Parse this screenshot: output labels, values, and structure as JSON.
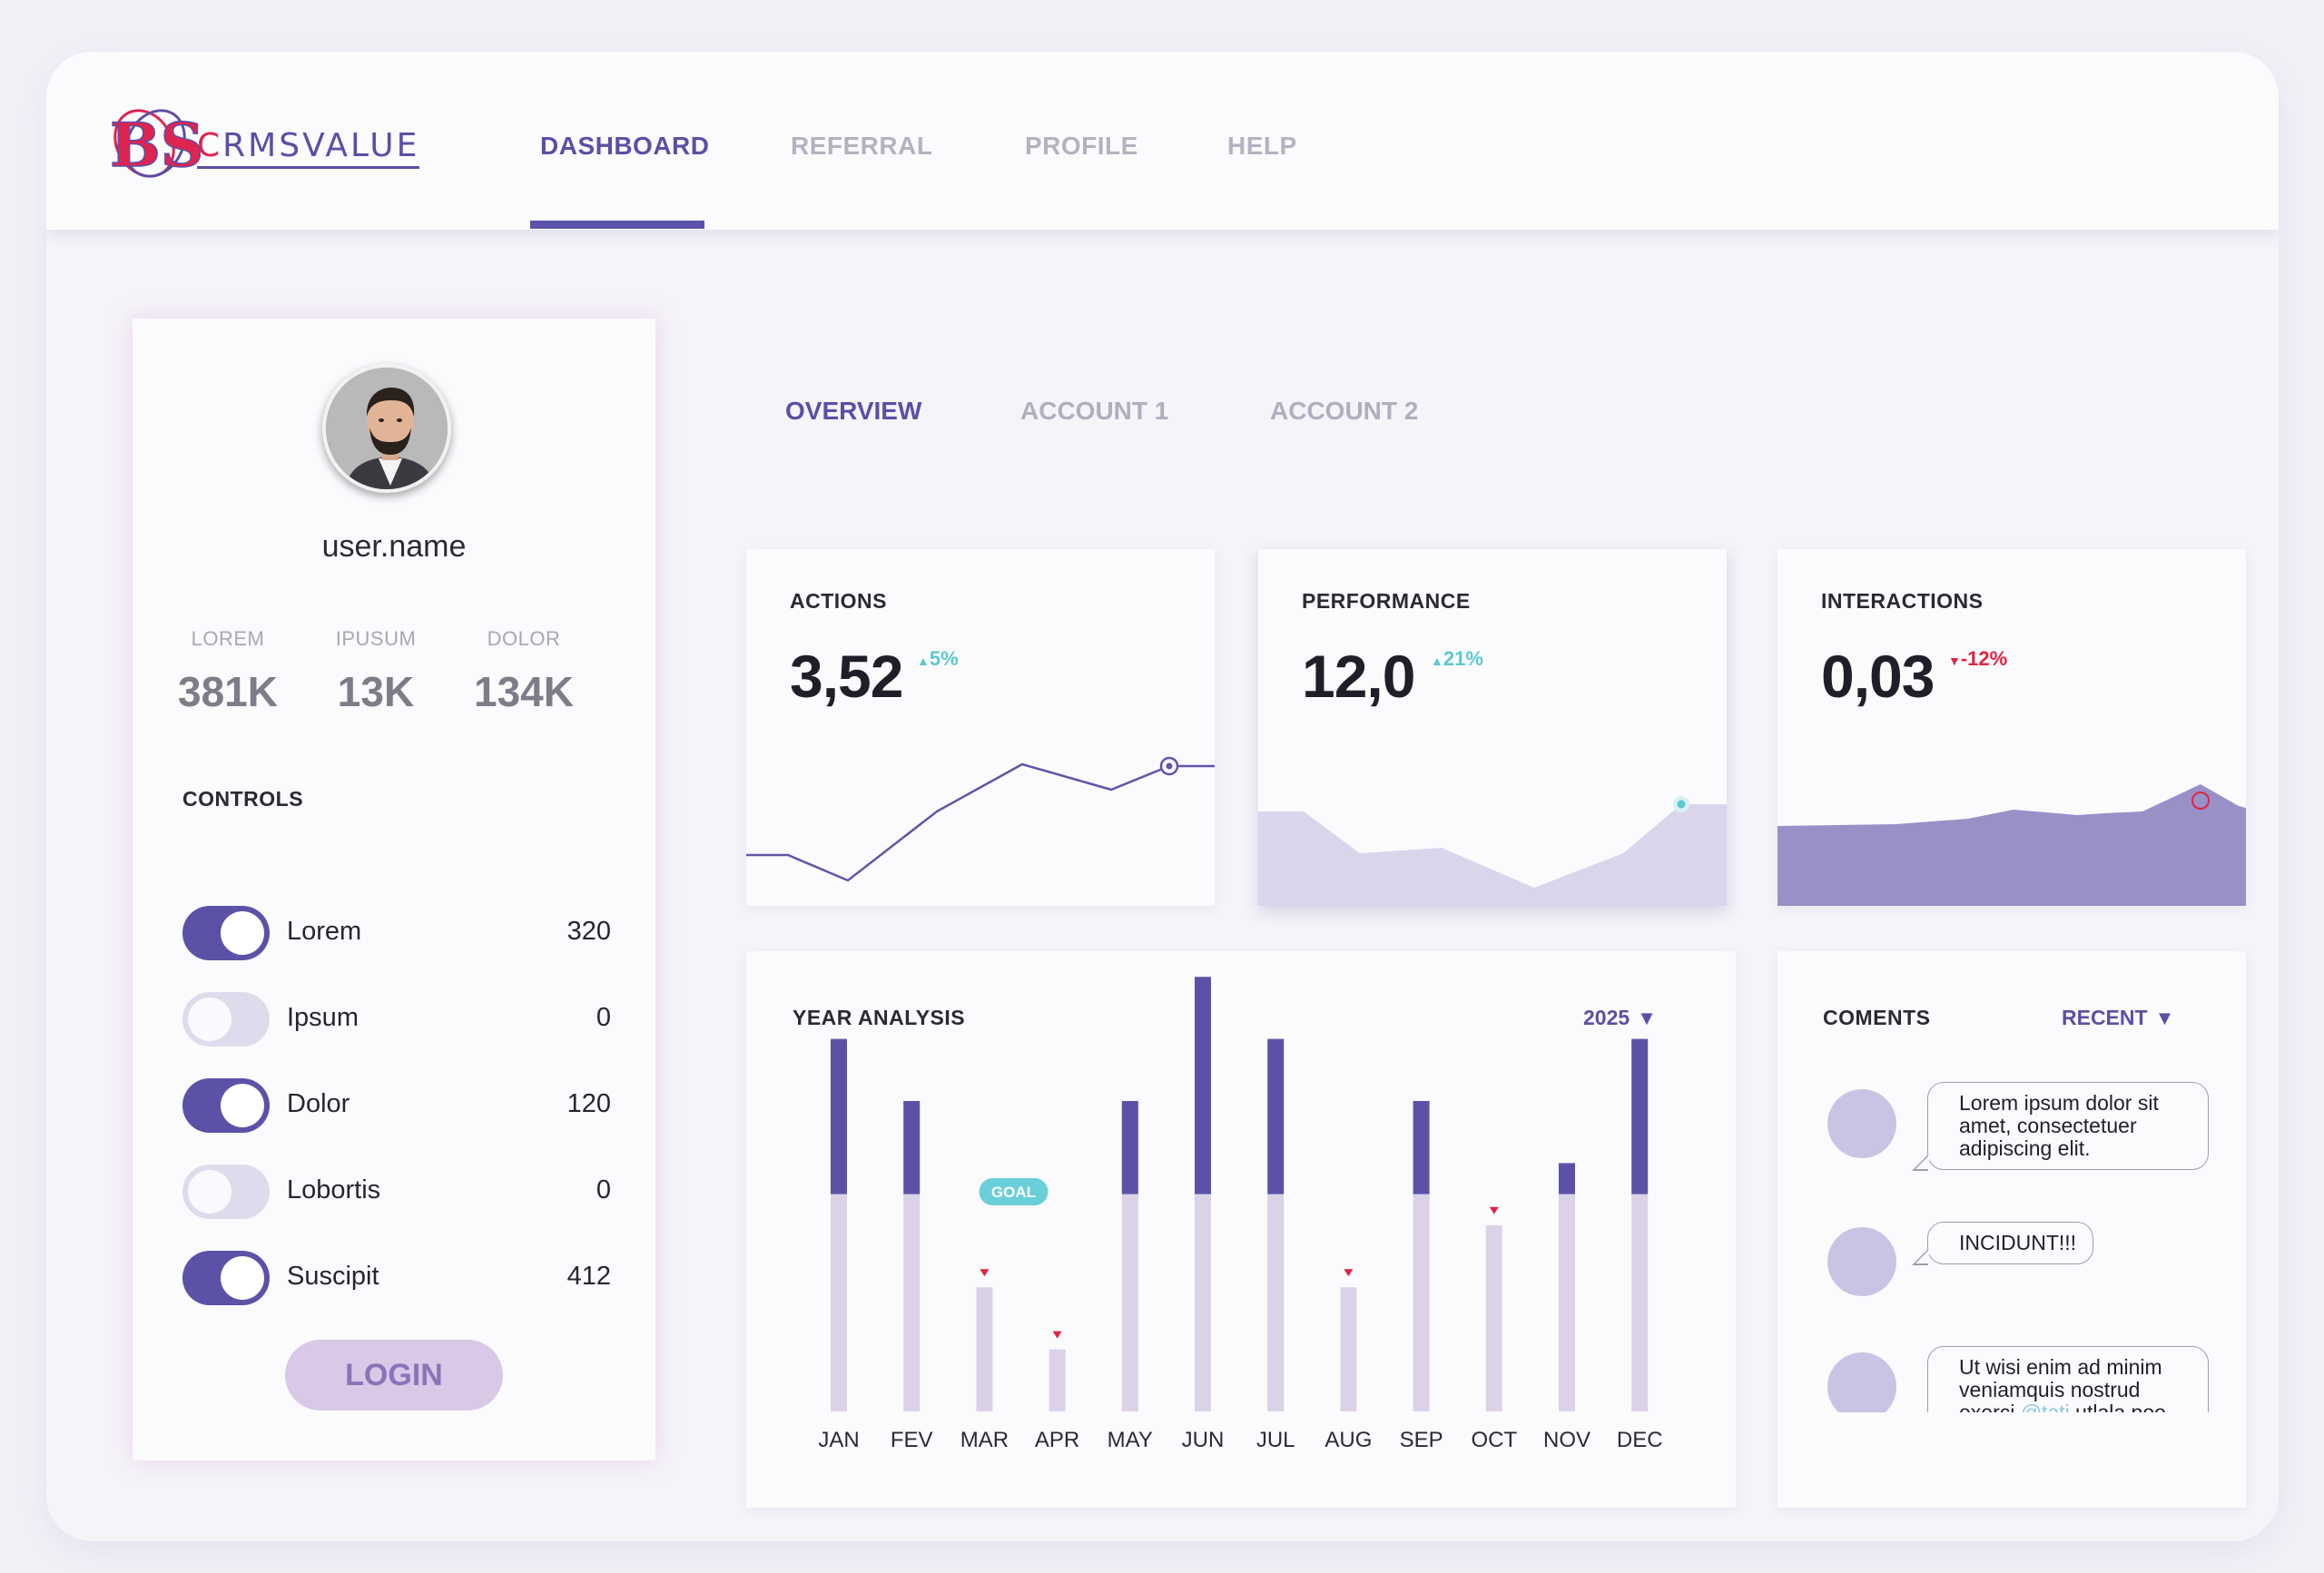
{
  "app": {
    "logo_mark": "BS",
    "logo_text_1": "C",
    "logo_text_2": "RMSVALUE"
  },
  "nav": {
    "items": [
      {
        "label": "DASHBOARD",
        "active": true
      },
      {
        "label": "REFERRAL",
        "active": false
      },
      {
        "label": "PROFILE",
        "active": false
      },
      {
        "label": "HELP",
        "active": false
      }
    ]
  },
  "user": {
    "name": "user.name",
    "stats": [
      {
        "label": "LOREM",
        "value": "381K"
      },
      {
        "label": "IPUSUM",
        "value": "13K"
      },
      {
        "label": "DOLOR",
        "value": "134K"
      }
    ],
    "controls_title": "CONTROLS",
    "controls": [
      {
        "label": "Lorem",
        "value": "320",
        "on": true
      },
      {
        "label": "Ipsum",
        "value": "0",
        "on": false
      },
      {
        "label": "Dolor",
        "value": "120",
        "on": true
      },
      {
        "label": "Lobortis",
        "value": "0",
        "on": false
      },
      {
        "label": "Suscipit",
        "value": "412",
        "on": true
      }
    ],
    "login_label": "LOGIN"
  },
  "subtabs": [
    {
      "label": "OVERVIEW",
      "active": true
    },
    {
      "label": "ACCOUNT 1",
      "active": false
    },
    {
      "label": "ACCOUNT 2",
      "active": false
    }
  ],
  "metrics": [
    {
      "title": "ACTIONS",
      "value": "3,52",
      "delta": "5%",
      "direction": "up",
      "color": "#5ec7d1"
    },
    {
      "title": "PERFORMANCE",
      "value": "12,0",
      "delta": "21%",
      "direction": "up",
      "color": "#5ec7d1"
    },
    {
      "title": "INTERACTIONS",
      "value": "0,03",
      "delta": "-12%",
      "direction": "down",
      "color": "#e2233f"
    }
  ],
  "year_analysis": {
    "title": "YEAR ANALYSIS",
    "year": "2025",
    "goal_label": "GOAL"
  },
  "comments": {
    "title": "COMENTS",
    "filter": "RECENT",
    "items": [
      {
        "text": "Lorem ipsum dolor sit amet, consectetuer adipiscing elit."
      },
      {
        "text": "INCIDUNT!!!"
      },
      {
        "text_before": "Ut wisi enim ad minim veniamquis nostrud exerci ",
        "mention": "@tati",
        "text_after": " utlala poe"
      }
    ]
  },
  "colors": {
    "accent": "#5b4fa5",
    "bar_dark": "#5b52a8",
    "bar_light": "#dcd2e8",
    "up": "#5ec7d1",
    "down": "#e2233f"
  },
  "chart_data": {
    "type": "bar",
    "title": "YEAR ANALYSIS",
    "categories": [
      "JAN",
      "FEV",
      "MAR",
      "APR",
      "MAY",
      "JUN",
      "JUL",
      "AUG",
      "SEP",
      "OCT",
      "NOV",
      "DEC"
    ],
    "goal": 7,
    "series": [
      {
        "values": [
          12,
          10,
          4,
          2,
          10,
          14,
          12,
          4,
          10,
          6,
          8,
          12
        ]
      }
    ],
    "below_goal_markers": [
      "MAR",
      "APR",
      "AUG",
      "OCT"
    ],
    "ylim": [
      0,
      14
    ]
  }
}
